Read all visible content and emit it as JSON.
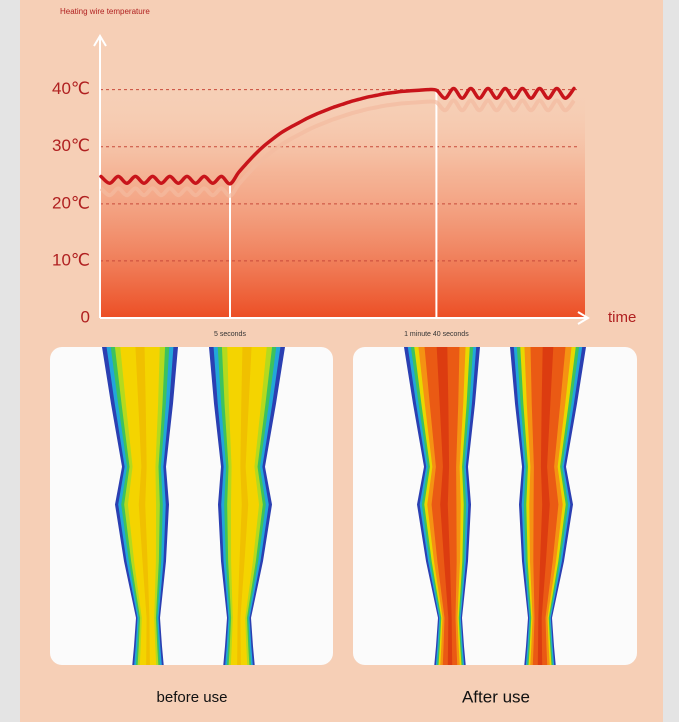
{
  "chart_data": {
    "type": "line",
    "title": "Heating wire temperature",
    "x_label": "time",
    "categories": [
      null,
      null,
      null,
      null,
      null,
      null,
      null,
      null,
      null,
      null,
      null,
      null,
      null,
      null,
      null,
      "5 seconds",
      null,
      null,
      null,
      null,
      null,
      null,
      null,
      null,
      null,
      null,
      null,
      null,
      null,
      null,
      null,
      null,
      null,
      null,
      null,
      null,
      null,
      null,
      null,
      "1 minute 40 seconds",
      null,
      null,
      null,
      null,
      null,
      null,
      null,
      null,
      null,
      null,
      null,
      null,
      null,
      null,
      null,
      null
    ],
    "series": [
      {
        "color": "#c8141a",
        "values": [
          24.8,
          23.6,
          24.8,
          23.6,
          24.8,
          23.6,
          24.8,
          23.6,
          24.8,
          23.6,
          24.8,
          23.6,
          24.8,
          23.6,
          24.8,
          23.5,
          25.5,
          27.2,
          28.8,
          30.2,
          31.4,
          32.5,
          33.4,
          34.2,
          35,
          35.7,
          36.3,
          36.9,
          37.4,
          37.9,
          38.3,
          38.7,
          39,
          39.3,
          39.5,
          39.7,
          39.8,
          39.9,
          40,
          39.9,
          38.5,
          40.2,
          38.5,
          40.2,
          38.5,
          40.2,
          38.5,
          40.2,
          38.5,
          40.2,
          38.5,
          40.2,
          38.5,
          40.2,
          38.5,
          40.2
        ]
      }
    ],
    "ylim": [
      0,
      48
    ],
    "yticks": [
      0,
      {
        "value": 10,
        "label": "10℃"
      },
      {
        "value": 20,
        "label": "20℃"
      },
      {
        "value": 30,
        "label": "30℃"
      },
      {
        "value": 40,
        "label": "40℃"
      }
    ],
    "grid": true,
    "grid_color": "#c84a3a"
  },
  "panels": [
    {
      "label": "before use"
    },
    {
      "label": "After use"
    }
  ]
}
